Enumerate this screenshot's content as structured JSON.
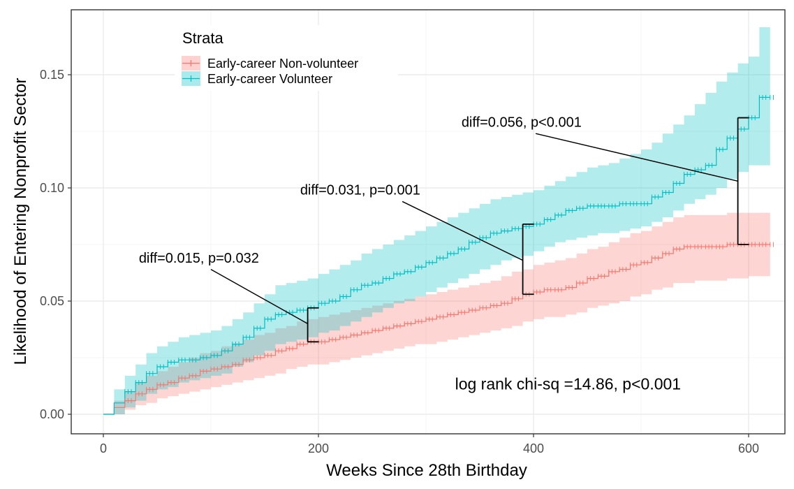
{
  "chart_data": {
    "type": "line",
    "subtype": "step survival curve with confidence bands",
    "xlabel": "Weeks Since 28th Birthday",
    "ylabel": "Likelihood of Entering Nonprofit Sector",
    "xlim": [
      -30,
      630
    ],
    "ylim": [
      -0.009,
      0.178
    ],
    "xticks": [
      0,
      200,
      400,
      600
    ],
    "xtick_labels": [
      "0",
      "200",
      "400",
      "600"
    ],
    "yticks": [
      0.0,
      0.05,
      0.1,
      0.15
    ],
    "ytick_labels": [
      "0.00",
      "0.05",
      "0.10",
      "0.15"
    ],
    "grid": true,
    "legend": {
      "title": "Strata",
      "position": "top-left",
      "entries": [
        "Early-career Non-volunteer",
        "Early-career Volunteer"
      ]
    },
    "series": [
      {
        "name": "Early-career Non-volunteer",
        "color": "#F8766D",
        "x": [
          0,
          10,
          20,
          30,
          40,
          50,
          60,
          70,
          80,
          90,
          100,
          110,
          120,
          130,
          140,
          150,
          160,
          170,
          180,
          190,
          200,
          210,
          220,
          230,
          240,
          250,
          260,
          270,
          280,
          290,
          300,
          310,
          320,
          330,
          340,
          350,
          360,
          370,
          380,
          390,
          400,
          410,
          420,
          430,
          440,
          450,
          460,
          470,
          480,
          490,
          500,
          510,
          520,
          530,
          540,
          550,
          560,
          570,
          580,
          590,
          600,
          610,
          620
        ],
        "values": [
          0.0,
          0.003,
          0.006,
          0.009,
          0.011,
          0.013,
          0.014,
          0.016,
          0.017,
          0.019,
          0.02,
          0.021,
          0.022,
          0.024,
          0.025,
          0.026,
          0.028,
          0.029,
          0.031,
          0.032,
          0.032,
          0.033,
          0.034,
          0.035,
          0.036,
          0.037,
          0.038,
          0.039,
          0.04,
          0.041,
          0.042,
          0.043,
          0.044,
          0.045,
          0.046,
          0.047,
          0.048,
          0.049,
          0.051,
          0.053,
          0.054,
          0.055,
          0.055,
          0.056,
          0.058,
          0.06,
          0.061,
          0.063,
          0.064,
          0.066,
          0.067,
          0.069,
          0.071,
          0.073,
          0.074,
          0.074,
          0.074,
          0.074,
          0.075,
          0.075,
          0.075,
          0.075,
          0.075
        ],
        "lower": [
          0.0,
          0.0,
          0.002,
          0.004,
          0.005,
          0.007,
          0.008,
          0.009,
          0.01,
          0.011,
          0.012,
          0.013,
          0.014,
          0.015,
          0.016,
          0.017,
          0.018,
          0.02,
          0.021,
          0.022,
          0.022,
          0.023,
          0.024,
          0.025,
          0.026,
          0.027,
          0.028,
          0.029,
          0.03,
          0.031,
          0.031,
          0.032,
          0.033,
          0.034,
          0.035,
          0.036,
          0.037,
          0.038,
          0.039,
          0.041,
          0.042,
          0.043,
          0.043,
          0.044,
          0.045,
          0.047,
          0.048,
          0.049,
          0.05,
          0.052,
          0.053,
          0.055,
          0.056,
          0.058,
          0.058,
          0.059,
          0.059,
          0.059,
          0.06,
          0.06,
          0.061,
          0.061,
          0.061
        ],
        "upper": [
          0.0,
          0.006,
          0.01,
          0.014,
          0.017,
          0.019,
          0.021,
          0.023,
          0.025,
          0.027,
          0.028,
          0.03,
          0.031,
          0.033,
          0.035,
          0.036,
          0.038,
          0.039,
          0.041,
          0.042,
          0.043,
          0.044,
          0.045,
          0.046,
          0.047,
          0.048,
          0.049,
          0.05,
          0.051,
          0.052,
          0.053,
          0.054,
          0.055,
          0.056,
          0.057,
          0.058,
          0.059,
          0.061,
          0.063,
          0.064,
          0.066,
          0.067,
          0.068,
          0.069,
          0.071,
          0.073,
          0.074,
          0.076,
          0.078,
          0.08,
          0.081,
          0.083,
          0.085,
          0.087,
          0.088,
          0.088,
          0.088,
          0.088,
          0.089,
          0.089,
          0.089,
          0.089,
          0.089
        ]
      },
      {
        "name": "Early-career Volunteer",
        "color": "#00BFC4",
        "x": [
          0,
          10,
          20,
          30,
          40,
          50,
          60,
          70,
          80,
          90,
          100,
          110,
          120,
          130,
          140,
          150,
          160,
          170,
          180,
          190,
          200,
          210,
          220,
          230,
          240,
          250,
          260,
          270,
          280,
          290,
          300,
          310,
          320,
          330,
          340,
          350,
          360,
          370,
          380,
          390,
          400,
          410,
          420,
          430,
          440,
          450,
          460,
          470,
          480,
          490,
          500,
          510,
          520,
          530,
          540,
          550,
          560,
          570,
          580,
          590,
          600,
          610,
          620
        ],
        "values": [
          0.0,
          0.005,
          0.01,
          0.014,
          0.018,
          0.021,
          0.023,
          0.024,
          0.024,
          0.025,
          0.026,
          0.028,
          0.031,
          0.034,
          0.038,
          0.042,
          0.044,
          0.045,
          0.046,
          0.047,
          0.049,
          0.05,
          0.052,
          0.055,
          0.057,
          0.058,
          0.06,
          0.062,
          0.063,
          0.065,
          0.067,
          0.069,
          0.071,
          0.073,
          0.076,
          0.078,
          0.08,
          0.081,
          0.082,
          0.083,
          0.084,
          0.086,
          0.088,
          0.09,
          0.091,
          0.092,
          0.092,
          0.092,
          0.093,
          0.093,
          0.093,
          0.096,
          0.098,
          0.102,
          0.106,
          0.108,
          0.11,
          0.117,
          0.122,
          0.126,
          0.131,
          0.14,
          0.14
        ],
        "lower": [
          0.0,
          0.0,
          0.003,
          0.006,
          0.009,
          0.011,
          0.012,
          0.014,
          0.015,
          0.016,
          0.017,
          0.018,
          0.021,
          0.023,
          0.026,
          0.028,
          0.031,
          0.032,
          0.033,
          0.034,
          0.036,
          0.037,
          0.039,
          0.041,
          0.043,
          0.045,
          0.047,
          0.049,
          0.05,
          0.052,
          0.054,
          0.056,
          0.058,
          0.06,
          0.062,
          0.064,
          0.066,
          0.068,
          0.069,
          0.07,
          0.072,
          0.074,
          0.076,
          0.077,
          0.078,
          0.079,
          0.08,
          0.08,
          0.081,
          0.082,
          0.083,
          0.085,
          0.087,
          0.09,
          0.093,
          0.095,
          0.097,
          0.1,
          0.104,
          0.107,
          0.11,
          0.11,
          0.11
        ],
        "upper": [
          0.0,
          0.011,
          0.017,
          0.022,
          0.027,
          0.03,
          0.032,
          0.034,
          0.035,
          0.036,
          0.037,
          0.039,
          0.042,
          0.045,
          0.049,
          0.053,
          0.057,
          0.058,
          0.059,
          0.06,
          0.062,
          0.064,
          0.066,
          0.068,
          0.071,
          0.073,
          0.075,
          0.077,
          0.079,
          0.081,
          0.083,
          0.085,
          0.087,
          0.089,
          0.091,
          0.093,
          0.095,
          0.096,
          0.097,
          0.098,
          0.099,
          0.101,
          0.103,
          0.105,
          0.107,
          0.109,
          0.11,
          0.111,
          0.113,
          0.115,
          0.117,
          0.12,
          0.124,
          0.128,
          0.132,
          0.137,
          0.142,
          0.147,
          0.151,
          0.155,
          0.158,
          0.171,
          0.171
        ]
      }
    ],
    "annotations": [
      {
        "text": "diff=0.015, p=0.032",
        "x": 190,
        "y_low": 0.032,
        "y_high": 0.047,
        "label_x": 33,
        "label_y": 0.067,
        "pointer_start_x": 100,
        "pointer_start_y": 0.064,
        "pointer_end_y": 0.04
      },
      {
        "text": "diff=0.031, p=0.001",
        "x": 390,
        "y_low": 0.053,
        "y_high": 0.084,
        "label_x": 183,
        "label_y": 0.097,
        "pointer_start_x": 278,
        "pointer_start_y": 0.094,
        "pointer_end_y": 0.068
      },
      {
        "text": "diff=0.056, p<0.001",
        "x": 590,
        "y_low": 0.075,
        "y_high": 0.131,
        "label_x": 333,
        "label_y": 0.127,
        "pointer_start_x": 402,
        "pointer_start_y": 0.124,
        "pointer_end_y": 0.103
      },
      {
        "text": "log rank chi-sq =14.86, p<0.001",
        "x": 327,
        "y": 0.011
      }
    ]
  }
}
